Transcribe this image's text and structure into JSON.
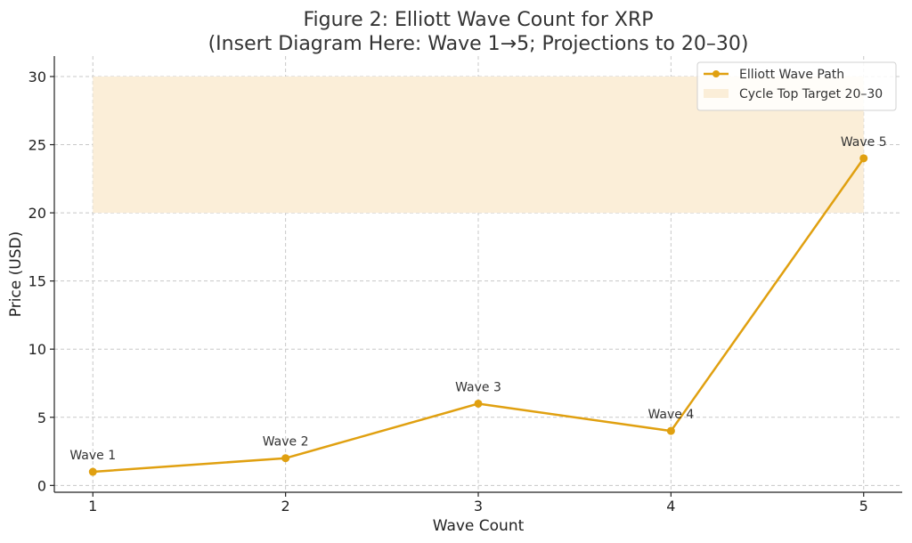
{
  "chart_data": {
    "type": "line",
    "title": "Figure 2: Elliott Wave Count for XRP",
    "subtitle": "(Insert Diagram Here: Wave 1→5; Projections to 20–30)",
    "xlabel": "Wave Count",
    "ylabel": "Price (USD)",
    "xlim": [
      0.8,
      5.2
    ],
    "ylim": [
      -0.5,
      31.5
    ],
    "x_ticks": [
      1,
      2,
      3,
      4,
      5
    ],
    "y_ticks": [
      0,
      5,
      10,
      15,
      20,
      25,
      30
    ],
    "grid": true,
    "legend_position": "top-right",
    "series": [
      {
        "name": "Elliott Wave Path",
        "color": "#e0a010",
        "x": [
          1,
          2,
          3,
          4,
          5
        ],
        "y": [
          1,
          2,
          6,
          4,
          24
        ],
        "point_labels": [
          "Wave 1",
          "Wave 2",
          "Wave 3",
          "Wave 4",
          "Wave 5"
        ]
      }
    ],
    "shaded_region": {
      "name": "Cycle Top Target 20–30",
      "x_range": [
        1,
        5
      ],
      "y_range": [
        20,
        30
      ],
      "color": "#fbeed8"
    }
  }
}
